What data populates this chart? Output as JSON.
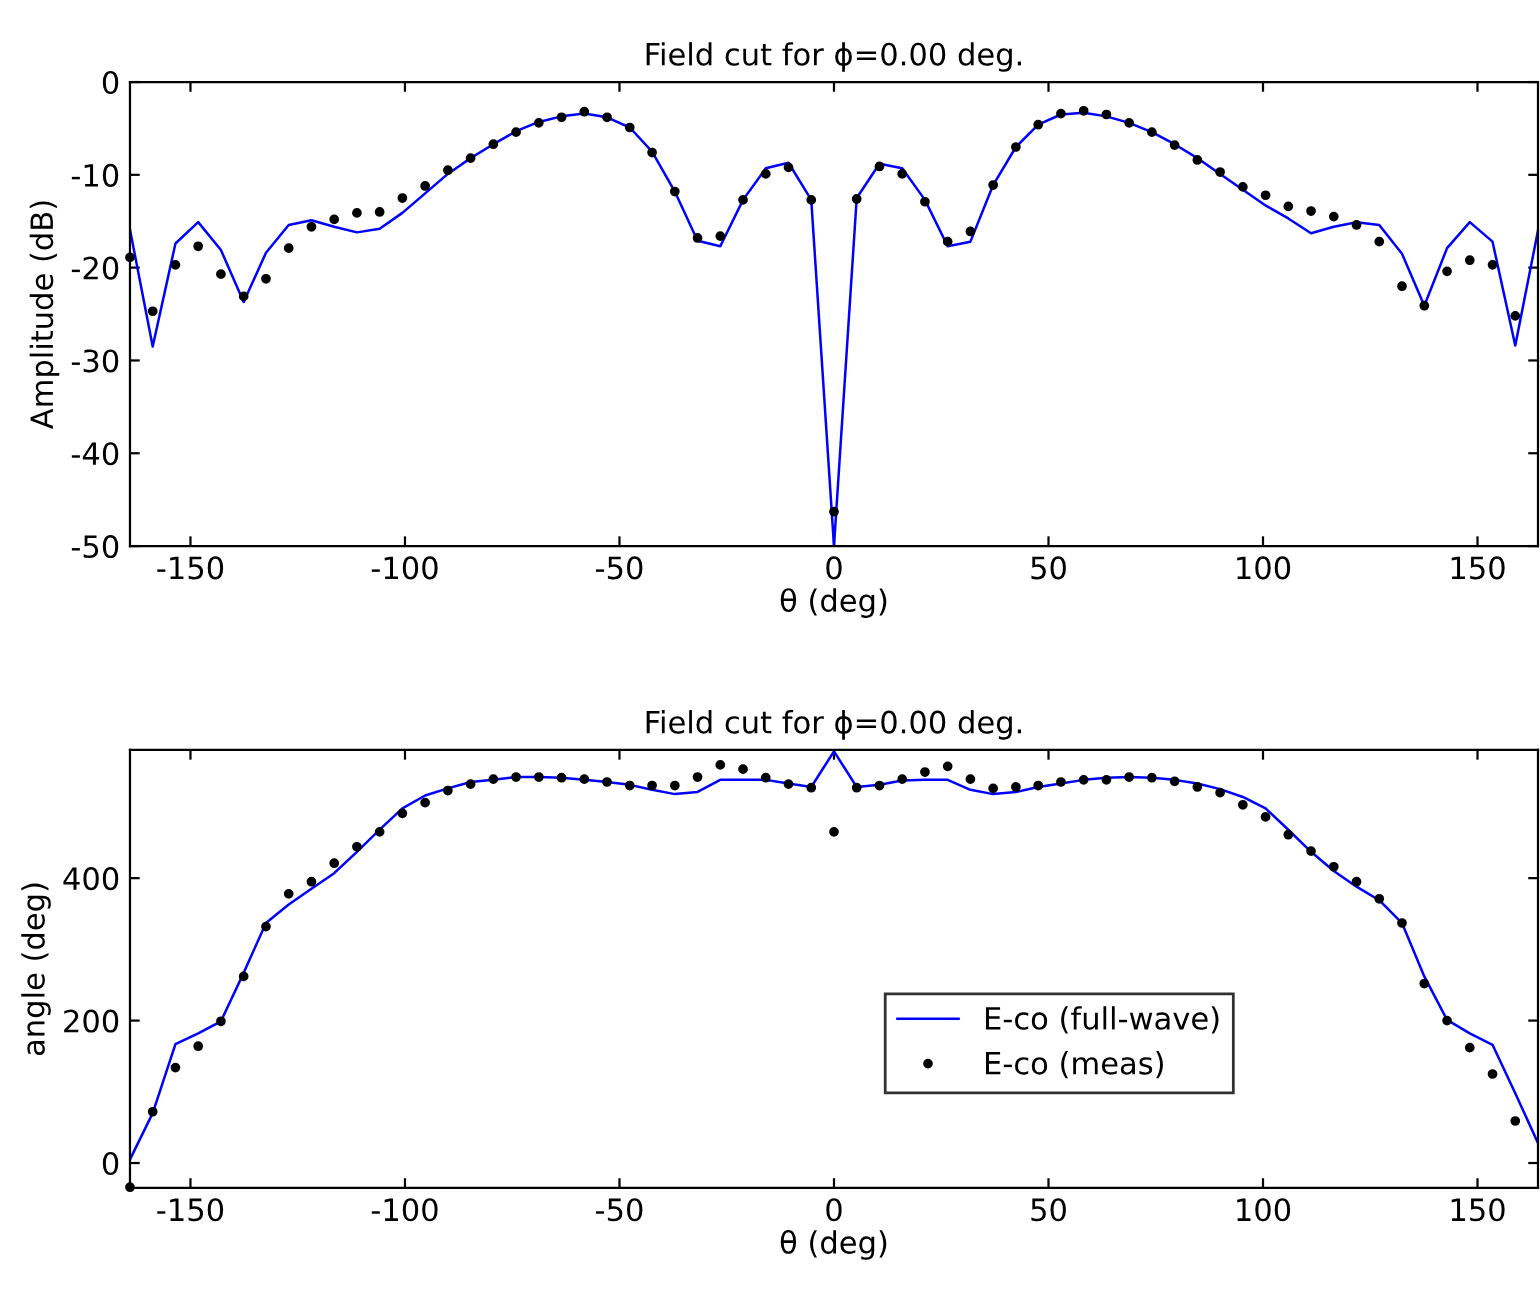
{
  "chart_data": [
    {
      "type": "line",
      "title": "Field cut for ϕ=0.00 deg.",
      "xlabel": "θ (deg)",
      "ylabel": "Amplitude (dB)",
      "xlim": [
        -164.1,
        164.1
      ],
      "xticks": [
        -150,
        -100,
        -50,
        0,
        50,
        100,
        150
      ],
      "ylim": [
        -50,
        0
      ],
      "yticks": [
        -50,
        -40,
        -30,
        -20,
        -10,
        0
      ],
      "grid": false,
      "legend": false,
      "series": [
        {
          "type": "line",
          "color": "#0000ff",
          "line_style": "solid",
          "marker": "none",
          "x": [
            -164.1,
            -158.8,
            -153.5,
            -148.2,
            -142.9,
            -137.6,
            -132.4,
            -127.1,
            -121.8,
            -116.5,
            -111.2,
            -105.9,
            -100.6,
            -95.3,
            -90.0,
            -84.7,
            -79.4,
            -74.1,
            -68.8,
            -63.5,
            -58.2,
            -52.9,
            -47.6,
            -42.4,
            -37.1,
            -31.8,
            -26.5,
            -21.2,
            -15.9,
            -10.6,
            -5.3,
            0,
            5.3,
            10.6,
            15.9,
            21.2,
            26.5,
            31.8,
            37.1,
            42.4,
            47.6,
            52.9,
            58.2,
            63.5,
            68.8,
            74.1,
            79.4,
            84.7,
            90.0,
            95.3,
            100.6,
            105.9,
            111.2,
            116.5,
            121.8,
            127.1,
            132.4,
            137.6,
            142.9,
            148.2,
            153.5,
            158.8,
            164.1
          ],
          "values": [
            -15.9,
            -28.5,
            -17.4,
            -15.1,
            -18.1,
            -23.7,
            -18.4,
            -15.4,
            -14.9,
            -15.6,
            -16.2,
            -15.8,
            -14.1,
            -12.0,
            -9.9,
            -8.2,
            -6.7,
            -5.3,
            -4.3,
            -3.7,
            -3.4,
            -3.8,
            -4.9,
            -7.5,
            -11.8,
            -17.1,
            -17.7,
            -12.7,
            -9.3,
            -8.7,
            -12.7,
            -50,
            -12.5,
            -8.8,
            -9.3,
            -12.7,
            -17.7,
            -17.2,
            -11.1,
            -7.0,
            -4.6,
            -3.5,
            -3.3,
            -3.7,
            -4.4,
            -5.4,
            -6.7,
            -8.2,
            -9.9,
            -11.6,
            -13.3,
            -14.7,
            -16.3,
            -15.6,
            -15.1,
            -15.4,
            -18.5,
            -24.1,
            -17.9,
            -15.1,
            -17.2,
            -28.4,
            -16.0
          ]
        },
        {
          "type": "scatter",
          "color": "#000000",
          "marker": "circle",
          "x": [
            -164.1,
            -158.8,
            -153.5,
            -148.2,
            -142.9,
            -137.6,
            -132.4,
            -127.1,
            -121.8,
            -116.5,
            -111.2,
            -105.9,
            -100.6,
            -95.3,
            -90.0,
            -84.7,
            -79.4,
            -74.1,
            -68.8,
            -63.5,
            -58.2,
            -52.9,
            -47.6,
            -42.4,
            -37.1,
            -31.8,
            -26.5,
            -21.2,
            -15.9,
            -10.6,
            -5.3,
            0,
            5.3,
            10.6,
            15.9,
            21.2,
            26.5,
            31.8,
            37.1,
            42.4,
            47.6,
            52.9,
            58.2,
            63.5,
            68.8,
            74.1,
            79.4,
            84.7,
            90.0,
            95.3,
            100.6,
            105.9,
            111.2,
            116.5,
            121.8,
            127.1,
            132.4,
            137.6,
            142.9,
            148.2,
            153.5,
            158.8
          ],
          "values": [
            -18.9,
            -24.7,
            -19.7,
            -17.7,
            -20.7,
            -23.1,
            -21.2,
            -17.9,
            -15.6,
            -14.8,
            -14.1,
            -14.0,
            -12.5,
            -11.2,
            -9.5,
            -8.2,
            -6.7,
            -5.4,
            -4.4,
            -3.8,
            -3.2,
            -3.8,
            -4.9,
            -7.6,
            -11.8,
            -16.8,
            -16.6,
            -12.7,
            -9.9,
            -9.2,
            -12.7,
            -46.3,
            -12.6,
            -9.1,
            -9.9,
            -12.9,
            -17.2,
            -16.1,
            -11.1,
            -7.0,
            -4.6,
            -3.4,
            -3.1,
            -3.5,
            -4.4,
            -5.4,
            -6.8,
            -8.4,
            -9.7,
            -11.3,
            -12.2,
            -13.4,
            -13.9,
            -14.5,
            -15.4,
            -17.2,
            -22.0,
            -24.1,
            -20.4,
            -19.2,
            -19.7,
            -25.2
          ]
        }
      ]
    },
    {
      "type": "line",
      "title": "Field cut for ϕ=0.00 deg.",
      "xlabel": "θ (deg)",
      "ylabel": "angle (deg)",
      "xlim": [
        -164.1,
        164.1
      ],
      "xticks": [
        -150,
        -100,
        -50,
        0,
        50,
        100,
        150
      ],
      "ylim": [
        -35,
        580
      ],
      "yticks": [
        0,
        200,
        400
      ],
      "grid": false,
      "legend": "center",
      "series": [
        {
          "type": "line",
          "name": "E-co (full-wave)",
          "color": "#0000ff",
          "line_style": "solid",
          "marker": "none",
          "x": [
            -164.1,
            -158.8,
            -153.5,
            -148.2,
            -142.9,
            -137.6,
            -132.4,
            -127.1,
            -121.8,
            -116.5,
            -111.2,
            -105.9,
            -100.6,
            -95.3,
            -90.0,
            -84.7,
            -79.4,
            -74.1,
            -68.8,
            -63.5,
            -58.2,
            -52.9,
            -47.6,
            -42.4,
            -37.1,
            -31.8,
            -26.5,
            -21.2,
            -15.9,
            -10.6,
            -5.3,
            0,
            5.3,
            10.6,
            15.9,
            21.2,
            26.5,
            31.8,
            37.1,
            42.4,
            47.6,
            52.9,
            58.2,
            63.5,
            68.8,
            74.1,
            79.4,
            84.7,
            90.0,
            95.3,
            100.6,
            105.9,
            111.2,
            116.5,
            121.8,
            127.1,
            132.4,
            137.6,
            142.9,
            148.2,
            153.5,
            158.8,
            164.1
          ],
          "values": [
            5,
            70,
            167,
            182,
            199,
            267,
            337,
            363,
            385,
            407,
            437,
            468,
            498,
            516,
            526,
            535,
            538,
            542,
            542,
            541,
            538,
            535,
            531,
            524,
            518,
            521,
            538,
            538,
            538,
            533,
            528,
            578,
            528,
            531,
            537,
            538,
            538,
            524,
            518,
            521,
            528,
            533,
            538,
            541,
            542,
            541,
            538,
            533,
            525,
            514,
            498,
            468,
            437,
            410,
            388,
            369,
            337,
            262,
            201,
            182,
            166,
            98,
            28
          ]
        },
        {
          "type": "scatter",
          "name": "E-co (meas)",
          "color": "#000000",
          "marker": "circle",
          "x": [
            -164.1,
            -158.8,
            -153.5,
            -148.2,
            -142.9,
            -137.6,
            -132.4,
            -127.1,
            -121.8,
            -116.5,
            -111.2,
            -105.9,
            -100.6,
            -95.3,
            -90.0,
            -84.7,
            -79.4,
            -74.1,
            -68.8,
            -63.5,
            -58.2,
            -52.9,
            -47.6,
            -42.4,
            -37.1,
            -31.8,
            -26.5,
            -21.2,
            -15.9,
            -10.6,
            -5.3,
            0,
            5.3,
            10.6,
            15.9,
            21.2,
            26.5,
            31.8,
            37.1,
            42.4,
            47.6,
            52.9,
            58.2,
            63.5,
            68.8,
            74.1,
            79.4,
            84.7,
            90.0,
            95.3,
            100.6,
            105.9,
            111.2,
            116.5,
            121.8,
            127.1,
            132.4,
            137.6,
            142.9,
            148.2,
            153.5,
            158.8
          ],
          "values": [
            -34,
            72,
            134,
            164,
            199,
            262,
            332,
            378,
            395,
            421,
            444,
            465,
            491,
            506,
            523,
            532,
            539,
            542,
            542,
            541,
            539,
            535,
            530,
            530,
            530,
            542,
            559,
            553,
            541,
            532,
            527,
            465,
            527,
            530,
            539,
            549,
            557,
            539,
            526,
            528,
            530,
            535,
            538,
            538,
            542,
            541,
            536,
            528,
            520,
            503,
            486,
            461,
            438,
            416,
            395,
            371,
            337,
            252,
            200,
            162,
            125,
            59
          ]
        }
      ]
    }
  ]
}
